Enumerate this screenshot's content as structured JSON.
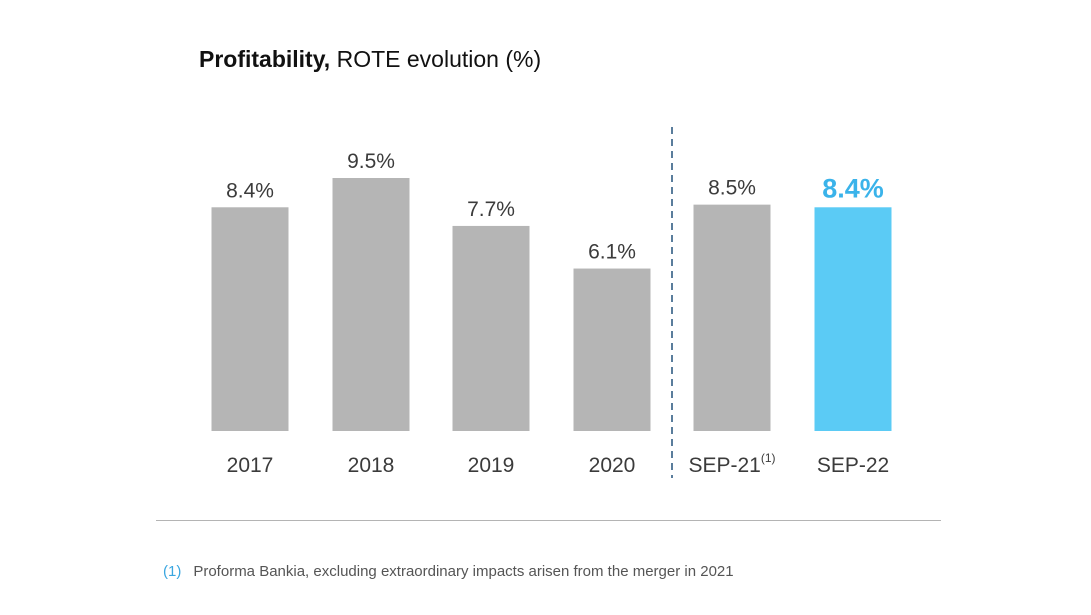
{
  "title": {
    "bold": "Profitability,",
    "rest": " ROTE evolution (%)"
  },
  "colors": {
    "bar": "#b5b5b5",
    "highlight": "#5bcbf5",
    "label": "#3b3b3b",
    "highlight_label": "#3ab3ea",
    "separator": "#5a7d9c"
  },
  "chart_data": {
    "type": "bar",
    "title": "Profitability, ROTE evolution (%)",
    "categories": [
      "2017",
      "2018",
      "2019",
      "2020",
      "SEP-21",
      "SEP-22"
    ],
    "category_superscripts": [
      "",
      "",
      "",
      "",
      "(1)",
      ""
    ],
    "values": [
      8.4,
      9.5,
      7.7,
      6.1,
      8.5,
      8.4
    ],
    "value_labels": [
      "8.4%",
      "9.5%",
      "7.7%",
      "6.1%",
      "8.5%",
      "8.4%"
    ],
    "highlight_index": 5,
    "separator_after_index": 3,
    "ylim": [
      0,
      9.5
    ],
    "xlabel": "",
    "ylabel": "",
    "grid": false
  },
  "footnote": {
    "marker": "(1)",
    "text": "Proforma Bankia, excluding extraordinary impacts arisen from the merger in 2021"
  }
}
